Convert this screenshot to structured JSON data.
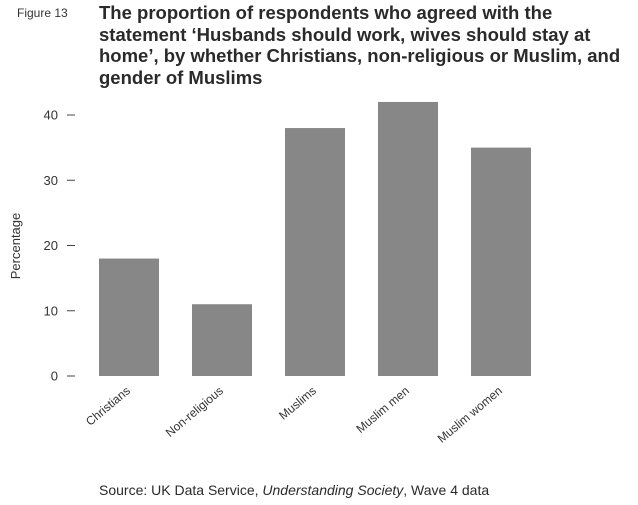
{
  "figure_label": "Figure 13",
  "title": "The proportion of respondents who agreed with the statement ‘Husbands should work, wives should stay at home’, by whether Christians, non-religious or Muslim, and gender of Muslims",
  "source": {
    "prefix": "Source: UK Data Service, ",
    "italic": "Understanding Society",
    "suffix": ", Wave 4 data"
  },
  "colors": {
    "bar": "#878787",
    "axis": "#444444"
  },
  "chart_data": {
    "type": "bar",
    "categories": [
      "Christians",
      "Non-religious",
      "Muslims",
      "Muslim men",
      "Muslim women"
    ],
    "values": [
      18,
      11,
      38,
      42,
      35
    ],
    "ylabel": "Percentage",
    "xlabel": "",
    "ylim": [
      0,
      40
    ],
    "yticks": [
      0,
      10,
      20,
      30,
      40
    ],
    "grid": false
  }
}
